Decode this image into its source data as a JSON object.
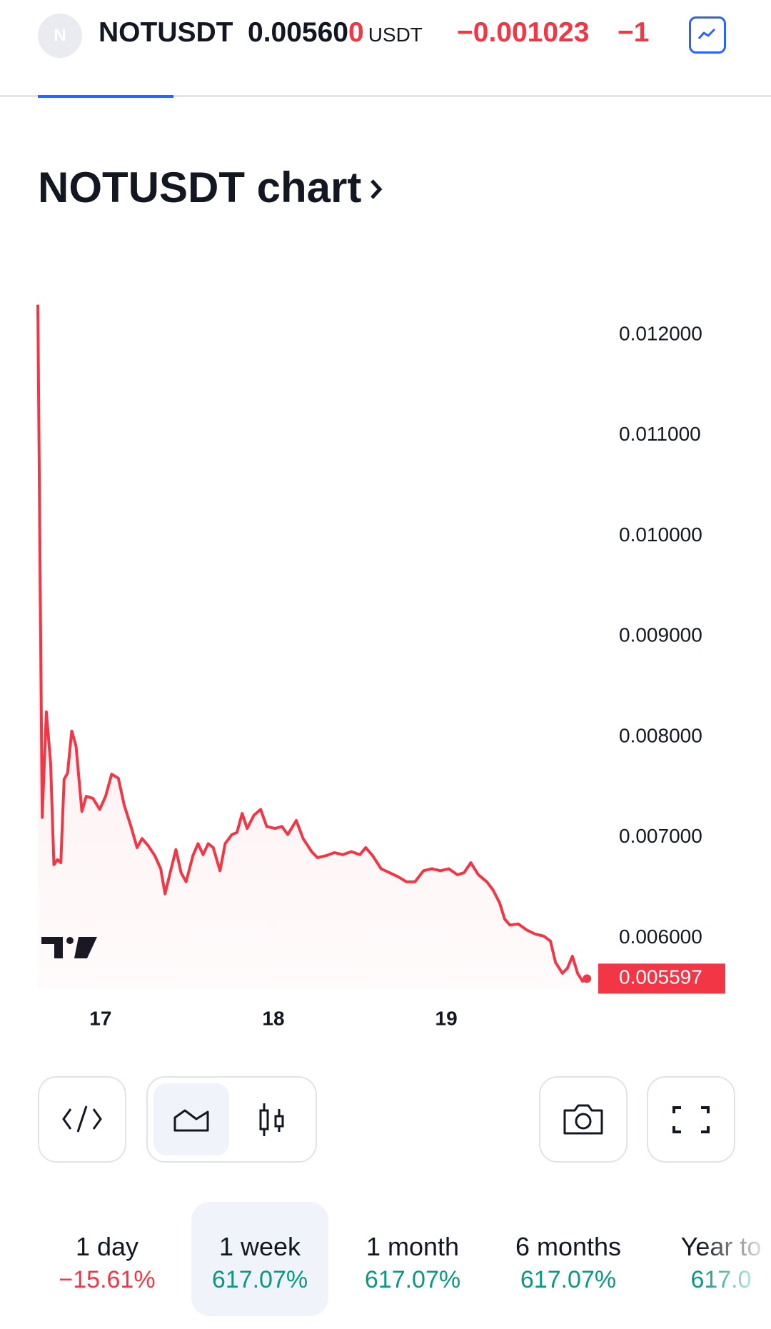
{
  "header": {
    "symbol_icon": "N",
    "symbol": "NOTUSDT",
    "price": "0.00560",
    "price_last_digit": "0",
    "currency": "USDT",
    "change": "−0.001023",
    "change_percent": "−1"
  },
  "chart_data": {
    "type": "line",
    "title": "NOTUSDT chart",
    "x": [
      16.637,
      16.662,
      16.686,
      16.711,
      16.73,
      16.75,
      16.77,
      16.789,
      16.809,
      16.833,
      16.858,
      16.892,
      16.917,
      16.956,
      16.995,
      17.029,
      17.064,
      17.103,
      17.137,
      17.176,
      17.211,
      17.24,
      17.275,
      17.314,
      17.348,
      17.373,
      17.397,
      17.436,
      17.466,
      17.495,
      17.534,
      17.564,
      17.593,
      17.623,
      17.652,
      17.691,
      17.721,
      17.76,
      17.789,
      17.819,
      17.848,
      17.887,
      17.926,
      17.961,
      18.01,
      18.049,
      18.083,
      18.132,
      18.172,
      18.221,
      18.255,
      18.304,
      18.353,
      18.402,
      18.451,
      18.5,
      18.534,
      18.574,
      18.623,
      18.672,
      18.721,
      18.77,
      18.819,
      18.868,
      18.917,
      18.966,
      19.015,
      19.064,
      19.103,
      19.142,
      19.186,
      19.235,
      19.27,
      19.309,
      19.338,
      19.368,
      19.417,
      19.466,
      19.515,
      19.564,
      19.603,
      19.632,
      19.672,
      19.701,
      19.73,
      19.76,
      19.789,
      19.814
    ],
    "values": [
      0.0123,
      0.0072,
      0.00825,
      0.00774,
      0.00673,
      0.00678,
      0.00675,
      0.00758,
      0.00764,
      0.00806,
      0.00791,
      0.00726,
      0.00741,
      0.00739,
      0.00728,
      0.00741,
      0.00763,
      0.00759,
      0.00732,
      0.00711,
      0.0069,
      0.00699,
      0.00692,
      0.00682,
      0.00669,
      0.00644,
      0.00661,
      0.00688,
      0.00665,
      0.00656,
      0.00682,
      0.00694,
      0.00683,
      0.00694,
      0.0069,
      0.00667,
      0.00694,
      0.00703,
      0.00705,
      0.00724,
      0.00709,
      0.00722,
      0.00728,
      0.00711,
      0.00709,
      0.00711,
      0.00703,
      0.00717,
      0.00699,
      0.00686,
      0.0068,
      0.00682,
      0.00685,
      0.00683,
      0.00686,
      0.00683,
      0.0069,
      0.00682,
      0.00669,
      0.00665,
      0.00661,
      0.00656,
      0.00656,
      0.00667,
      0.00669,
      0.00667,
      0.00669,
      0.00663,
      0.00665,
      0.00675,
      0.00663,
      0.00656,
      0.00648,
      0.00635,
      0.00619,
      0.00613,
      0.00614,
      0.00608,
      0.00604,
      0.00602,
      0.00597,
      0.00576,
      0.00565,
      0.0057,
      0.00582,
      0.00565,
      0.00557,
      0.005597
    ],
    "color": "#f23645",
    "xlim": [
      16.637,
      19.9
    ],
    "xticks": [
      17,
      18,
      19
    ],
    "ylim": [
      0.0055,
      0.01234
    ],
    "yticks": [
      {
        "value": 0.006,
        "label": "0.006000"
      },
      {
        "value": 0.007,
        "label": "0.007000"
      },
      {
        "value": 0.008,
        "label": "0.008000"
      },
      {
        "value": 0.009,
        "label": "0.009000"
      },
      {
        "value": 0.01,
        "label": "0.010000"
      },
      {
        "value": 0.011,
        "label": "0.011000"
      },
      {
        "value": 0.012,
        "label": "0.012000"
      }
    ],
    "grid": false
  },
  "periods": [
    {
      "label": "1 day",
      "change": "−15.61%",
      "color": "#f23645"
    },
    {
      "label": "1 week",
      "change": "617.07%",
      "color": "#089981",
      "selected": true
    },
    {
      "label": "1 month",
      "change": "617.07%",
      "color": "#089981"
    },
    {
      "label": "6 months",
      "change": "617.07%",
      "color": "#089981"
    },
    {
      "label": "Year to",
      "change": "617.0",
      "color": "#089981"
    }
  ]
}
